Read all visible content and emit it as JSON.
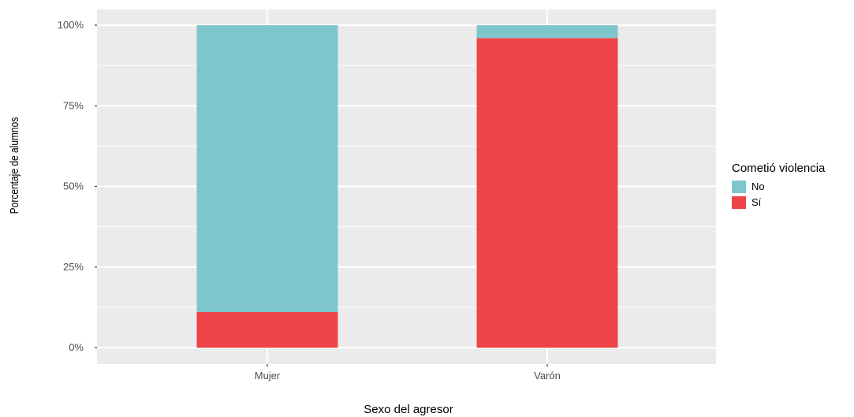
{
  "chart_data": {
    "type": "bar",
    "stacked": true,
    "orientation": "vertical",
    "categories": [
      "Mujer",
      "Varón"
    ],
    "series": [
      {
        "name": "No",
        "values": [
          89,
          4
        ],
        "color": "#7EC6CC"
      },
      {
        "name": "Sí",
        "values": [
          11,
          96
        ],
        "color": "#EF4447"
      }
    ],
    "xlabel": "Sexo del agresor",
    "ylabel": "Porcentaje de alumnos",
    "ylim": [
      0,
      100
    ],
    "yticks": [
      0,
      25,
      50,
      75,
      100
    ],
    "ytick_labels": [
      "0%",
      "25%",
      "50%",
      "75%",
      "100%"
    ],
    "grid": true,
    "panel_background": "#EBEBEB",
    "legend": {
      "title": "Cometió violencia",
      "position": "right"
    }
  }
}
